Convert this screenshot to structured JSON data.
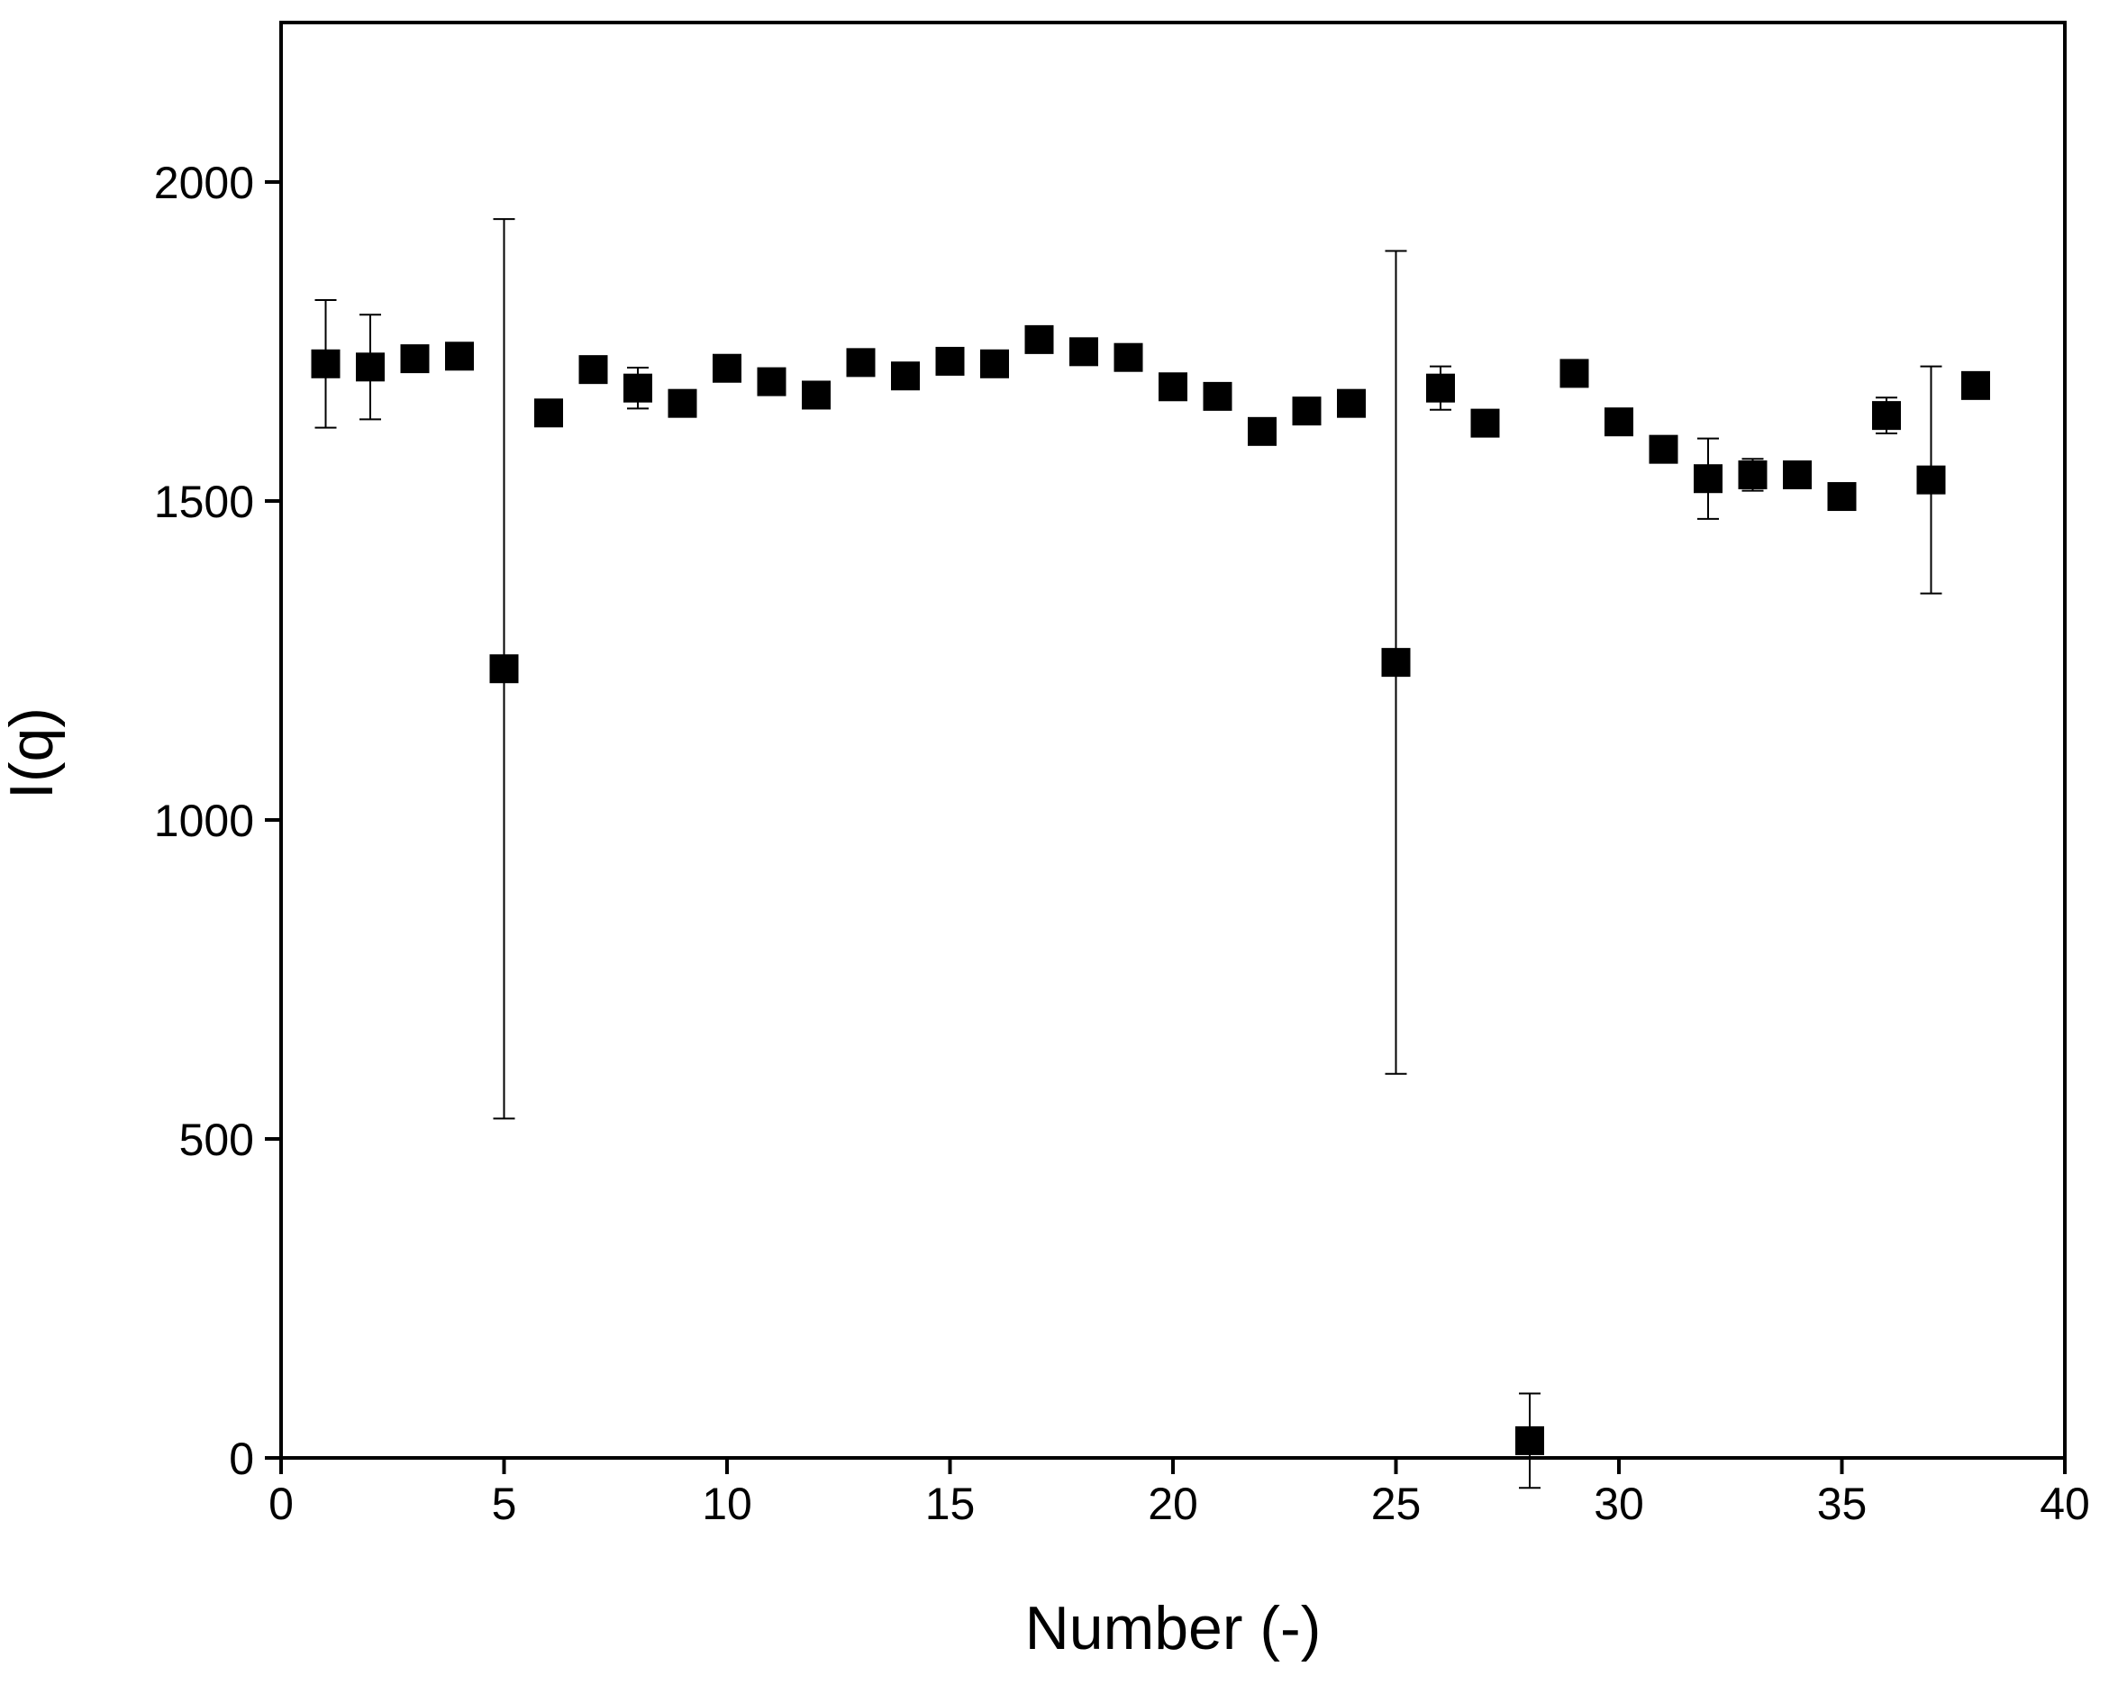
{
  "chart_data": {
    "type": "scatter",
    "x_label": "Number (-)",
    "y_label": "I(q)",
    "x": [
      1,
      2,
      3,
      4,
      5,
      6,
      7,
      8,
      9,
      10,
      11,
      12,
      13,
      14,
      15,
      16,
      17,
      18,
      19,
      20,
      21,
      22,
      23,
      24,
      25,
      26,
      27,
      28,
      29,
      30,
      31,
      32,
      33,
      34,
      35,
      36,
      37,
      38
    ],
    "values": [
      1715,
      1710,
      1723,
      1727,
      1237,
      1638,
      1706,
      1677,
      1653,
      1708,
      1687,
      1666,
      1717,
      1696,
      1719,
      1715,
      1753,
      1734,
      1725,
      1679,
      1664,
      1609,
      1641,
      1653,
      1247,
      1677,
      1622,
      27,
      1700,
      1624,
      1581,
      1535,
      1541,
      1541,
      1507,
      1634,
      1533,
      1681
    ],
    "errors": [
      100,
      82,
      null,
      null,
      705,
      null,
      null,
      32,
      null,
      null,
      null,
      null,
      null,
      null,
      null,
      null,
      null,
      null,
      null,
      null,
      null,
      null,
      null,
      null,
      645,
      34,
      null,
      74,
      10,
      null,
      null,
      63,
      25,
      null,
      null,
      28,
      178,
      null
    ],
    "color": "#000000",
    "xlim": [
      0,
      40
    ],
    "ylim": [
      0,
      2250
    ],
    "xticks": [
      0,
      5,
      10,
      15,
      20,
      25,
      30,
      35,
      40
    ],
    "yticks": [
      0,
      500,
      1000,
      1500,
      2000
    ],
    "grid": false
  }
}
